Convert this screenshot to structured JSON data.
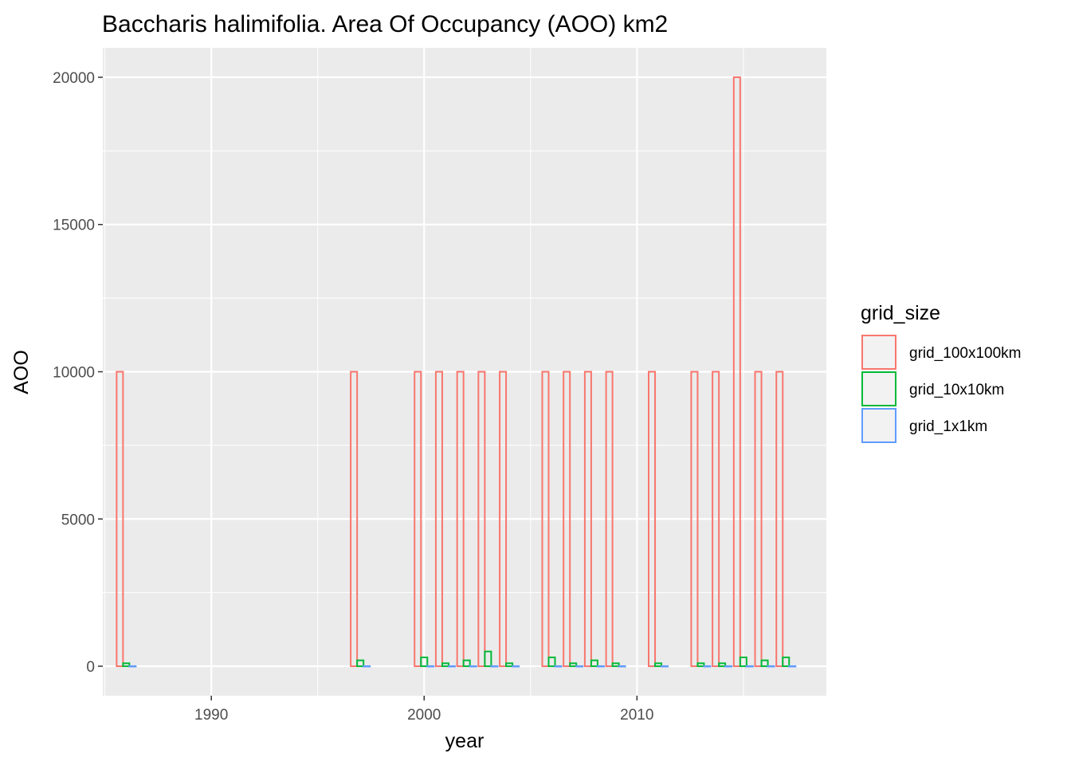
{
  "chart_data": {
    "type": "bar",
    "title": "Baccharis halimifolia. Area Of Occupancy (AOO) km2",
    "xlabel": "year",
    "ylabel": "AOO",
    "xlim": [
      1984.9,
      2018.9
    ],
    "ylim": [
      -1000,
      21000
    ],
    "x_ticks": [
      1990,
      2000,
      2010
    ],
    "y_ticks": [
      0,
      5000,
      10000,
      15000,
      20000
    ],
    "grid": true,
    "legend": {
      "title": "grid_size",
      "position": "right",
      "entries": [
        "grid_100x100km",
        "grid_10x10km",
        "grid_1x1km"
      ]
    },
    "colors": {
      "grid_100x100km": "#F8766D",
      "grid_10x10km": "#00BA38",
      "grid_1x1km": "#619CFF",
      "panel": "#EBEBEB",
      "grid_line": "#FFFFFF"
    },
    "bar_width_years": 0.9,
    "categories": [
      1986,
      1997,
      2000,
      2001,
      2002,
      2003,
      2004,
      2006,
      2007,
      2008,
      2009,
      2011,
      2013,
      2014,
      2015,
      2016,
      2017
    ],
    "series": [
      {
        "name": "grid_100x100km",
        "values": [
          10000,
          10000,
          10000,
          10000,
          10000,
          10000,
          10000,
          10000,
          10000,
          10000,
          10000,
          10000,
          10000,
          10000,
          20000,
          10000,
          10000
        ]
      },
      {
        "name": "grid_10x10km",
        "values": [
          100,
          200,
          300,
          100,
          200,
          500,
          100,
          300,
          100,
          200,
          100,
          100,
          100,
          100,
          300,
          200,
          300
        ]
      },
      {
        "name": "grid_1x1km",
        "values": [
          3,
          3,
          3,
          3,
          3,
          3,
          3,
          3,
          3,
          3,
          3,
          3,
          3,
          3,
          3,
          3,
          3
        ]
      }
    ]
  }
}
